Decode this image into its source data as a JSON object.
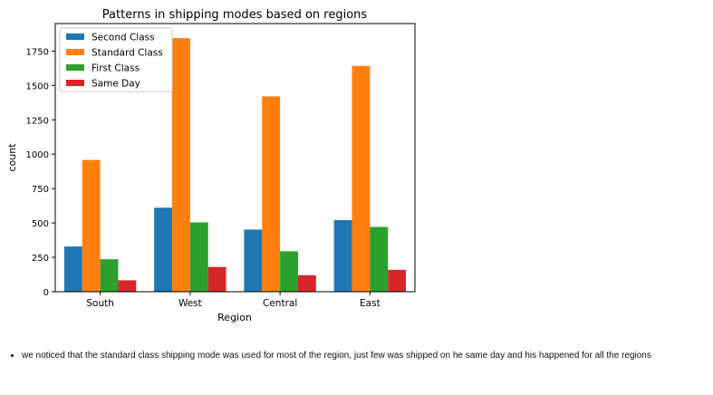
{
  "chart_data": {
    "type": "bar",
    "title": "Patterns in shipping modes based on regions",
    "xlabel": "Region",
    "ylabel": "count",
    "categories": [
      "South",
      "West",
      "Central",
      "East"
    ],
    "series": [
      {
        "name": "Second Class",
        "color": "#1f77b4",
        "values": [
          329,
          611,
          452,
          521
        ]
      },
      {
        "name": "Standard Class",
        "color": "#ff7f0e",
        "values": [
          958,
          1844,
          1420,
          1642
        ]
      },
      {
        "name": "First Class",
        "color": "#2ca02c",
        "values": [
          236,
          504,
          294,
          471
        ]
      },
      {
        "name": "Same Day",
        "color": "#d62728",
        "values": [
          83,
          180,
          120,
          159
        ]
      }
    ],
    "ylim": [
      0,
      1950
    ],
    "yticks": [
      0,
      250,
      500,
      750,
      1000,
      1250,
      1500,
      1750
    ],
    "grid": false,
    "legend": "top-left"
  },
  "notes": [
    "we noticed that the standard class shipping mode was used for most of the region, just few was shipped on he same day and his happened for all the regions"
  ]
}
